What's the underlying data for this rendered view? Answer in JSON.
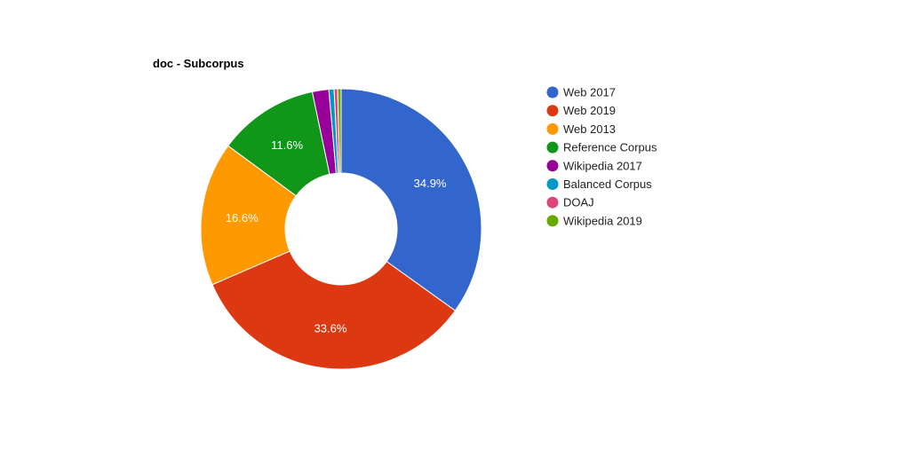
{
  "chart_data": {
    "type": "pie",
    "title": "doc - Subcorpus",
    "donut": true,
    "legend_position": "right",
    "categories": [
      "Web 2017",
      "Web 2019",
      "Web 2013",
      "Reference Corpus",
      "Wikipedia 2017",
      "Balanced Corpus",
      "DOAJ",
      "Wikipedia 2019"
    ],
    "values": [
      34.9,
      33.6,
      16.6,
      11.6,
      1.9,
      0.6,
      0.4,
      0.4
    ],
    "data_labels": [
      "34.9%",
      "33.6%",
      "16.6%",
      "11.6%",
      "",
      "",
      "",
      ""
    ],
    "colors": [
      "#3366cc",
      "#dc3912",
      "#ff9900",
      "#109618",
      "#990099",
      "#0099c6",
      "#dd4477",
      "#66aa00"
    ]
  }
}
